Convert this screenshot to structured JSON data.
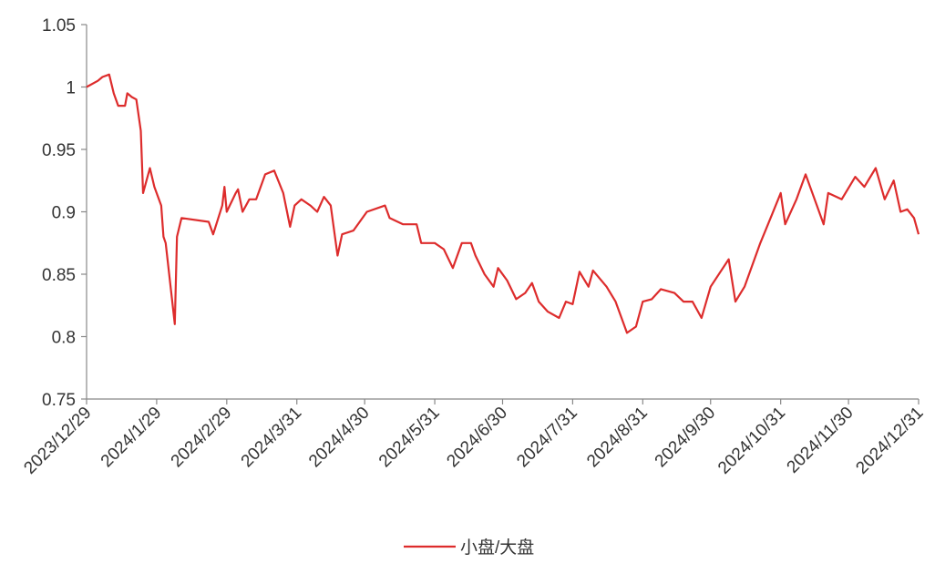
{
  "chart_data": {
    "type": "line",
    "x": [
      "2023/12/29",
      "2024/1/3",
      "2024/1/5",
      "2024/1/8",
      "2024/1/10",
      "2024/1/12",
      "2024/1/15",
      "2024/1/16",
      "2024/1/18",
      "2024/1/20",
      "2024/1/22",
      "2024/1/23",
      "2024/1/26",
      "2024/1/28",
      "2024/1/31",
      "2024/2/1",
      "2024/2/2",
      "2024/2/6",
      "2024/2/7",
      "2024/2/9",
      "2024/2/21",
      "2024/2/23",
      "2024/2/27",
      "2024/2/28",
      "2024/2/29",
      "2024/3/4",
      "2024/3/5",
      "2024/3/7",
      "2024/3/10",
      "2024/3/13",
      "2024/3/17",
      "2024/3/21",
      "2024/3/25",
      "2024/3/28",
      "2024/3/30",
      "2024/4/2",
      "2024/4/6",
      "2024/4/9",
      "2024/4/12",
      "2024/4/15",
      "2024/4/18",
      "2024/4/20",
      "2024/4/25",
      "2024/5/1",
      "2024/5/9",
      "2024/5/11",
      "2024/5/17",
      "2024/5/23",
      "2024/5/25",
      "2024/5/31",
      "2024/6/4",
      "2024/6/8",
      "2024/6/12",
      "2024/6/16",
      "2024/6/18",
      "2024/6/22",
      "2024/6/26",
      "2024/6/28",
      "2024/7/2",
      "2024/7/6",
      "2024/7/10",
      "2024/7/13",
      "2024/7/16",
      "2024/7/20",
      "2024/7/25",
      "2024/7/28",
      "2024/7/31",
      "2024/8/3",
      "2024/8/7",
      "2024/8/9",
      "2024/8/15",
      "2024/8/19",
      "2024/8/24",
      "2024/8/28",
      "2024/8/31",
      "2024/9/4",
      "2024/9/8",
      "2024/9/14",
      "2024/9/18",
      "2024/9/22",
      "2024/9/26",
      "2024/9/30",
      "2024/10/8",
      "2024/10/11",
      "2024/10/15",
      "2024/10/22",
      "2024/10/27",
      "2024/10/31",
      "2024/11/2",
      "2024/11/7",
      "2024/11/11",
      "2024/11/16",
      "2024/11/19",
      "2024/11/21",
      "2024/11/27",
      "2024/12/3",
      "2024/12/7",
      "2024/12/12",
      "2024/12/16",
      "2024/12/20",
      "2024/12/23",
      "2024/12/26",
      "2024/12/29",
      "2024/12/31"
    ],
    "series": [
      {
        "name": "小盘/大盘",
        "color": "#dd2c2c",
        "values": [
          1.0,
          1.005,
          1.008,
          1.01,
          0.995,
          0.985,
          0.985,
          0.995,
          0.992,
          0.99,
          0.965,
          0.915,
          0.935,
          0.92,
          0.905,
          0.88,
          0.875,
          0.81,
          0.88,
          0.895,
          0.892,
          0.882,
          0.905,
          0.92,
          0.9,
          0.915,
          0.918,
          0.9,
          0.91,
          0.91,
          0.93,
          0.933,
          0.915,
          0.888,
          0.905,
          0.91,
          0.905,
          0.9,
          0.912,
          0.905,
          0.865,
          0.882,
          0.885,
          0.9,
          0.905,
          0.895,
          0.89,
          0.89,
          0.875,
          0.875,
          0.87,
          0.855,
          0.875,
          0.875,
          0.865,
          0.85,
          0.84,
          0.855,
          0.845,
          0.83,
          0.835,
          0.843,
          0.828,
          0.82,
          0.815,
          0.828,
          0.826,
          0.852,
          0.84,
          0.853,
          0.84,
          0.828,
          0.803,
          0.808,
          0.828,
          0.83,
          0.838,
          0.835,
          0.828,
          0.828,
          0.815,
          0.84,
          0.862,
          0.828,
          0.84,
          0.875,
          0.897,
          0.915,
          0.89,
          0.91,
          0.93,
          0.905,
          0.89,
          0.915,
          0.91,
          0.928,
          0.92,
          0.935,
          0.91,
          0.925,
          0.9,
          0.902,
          0.895,
          0.882
        ]
      }
    ],
    "xlim": [
      "2023/12/29",
      "2024/12/31"
    ],
    "xticks": [
      "2023/12/29",
      "2024/1/29",
      "2024/2/29",
      "2024/3/31",
      "2024/4/30",
      "2024/5/31",
      "2024/6/30",
      "2024/7/31",
      "2024/8/31",
      "2024/9/30",
      "2024/10/31",
      "2024/11/30",
      "2024/12/31"
    ],
    "ylim": [
      0.75,
      1.05
    ],
    "yticks": [
      0.75,
      0.8,
      0.85,
      0.9,
      0.95,
      1,
      1.05
    ],
    "legend": "bottom"
  }
}
